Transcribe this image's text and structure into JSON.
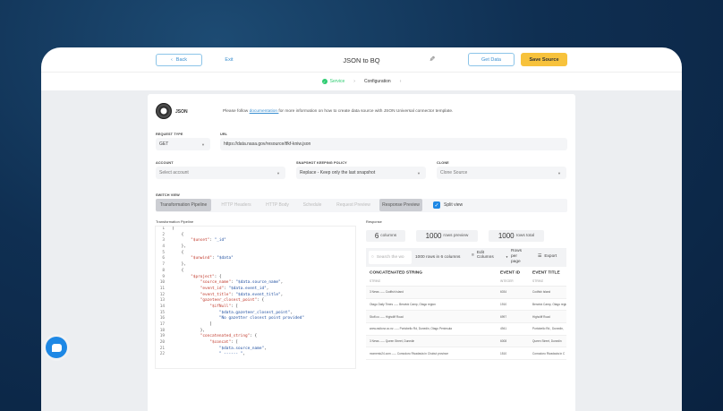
{
  "header": {
    "back": "Back",
    "exit": "Exit",
    "title": "JSON to BQ",
    "get_data": "Get Data",
    "save_source": "Save Source"
  },
  "steps": [
    {
      "label": "Service",
      "done": true
    },
    {
      "label": "Configuration",
      "done": false
    }
  ],
  "source": {
    "name": "JSON",
    "info_pre": "Please follow ",
    "info_link": "documentation ",
    "info_post": "for more information on how to create data source with JSON Universal connector template."
  },
  "form": {
    "request_type_label": "REQUEST TYPE",
    "request_type": "GET",
    "url_label": "URL",
    "url": "https://data.nasa.gov/resource/tfkf-kniw.json",
    "account_label": "ACCOUNT",
    "account_placeholder": "Select account",
    "snapshot_label": "SNAPSHOT KEEPING POLICY",
    "snapshot": "Replace - Keep only the last snapshot",
    "clone_label": "CLONE",
    "clone_placeholder": "Clone Source"
  },
  "switch_view": {
    "label": "SWITCH VIEW",
    "tabs": [
      "Transformation Pipeline",
      "HTTP Headers",
      "HTTP Body",
      "Schedule",
      "Request Preview",
      "Response Preview"
    ],
    "split_view": "Split view",
    "split_checked": true
  },
  "pipeline": {
    "label": "Transformation Pipeline",
    "lines": [
      "[",
      "    {",
      "        \"$unset\": \"_id\"",
      "    },",
      "    {",
      "        \"$unwind\": \"$data\"",
      "    },",
      "    {",
      "        \"$project\": {",
      "            \"source_name\": \"$data.source_name\",",
      "            \"event_id\": \"$data.event_id\",",
      "            \"event_title\": \"$data.event_title\",",
      "            \"gazeteer_closest_point\": {",
      "                \"$ifNull\": [",
      "                    \"$data.gazeteer_closest_point\",",
      "                    \"No gazetter closest point provided\"",
      "                ]",
      "            },",
      "            \"concatenated_string\": {",
      "                \"$concat\": [",
      "                    \"$data.source_name\",",
      "                    \" ------ \","
    ]
  },
  "response": {
    "label": "Response",
    "columns_n": "6",
    "columns_t": "columns",
    "preview_n": "1000",
    "preview_t": "rows preview",
    "total_n": "1000",
    "total_t": "rows total",
    "search_placeholder": "Search the wo",
    "summary": "1000 rows in 6 columns",
    "edit_columns": "Edit Columns",
    "rows_per_page": "Rows per page",
    "export": "Export",
    "headers": [
      {
        "name": "CONCATENATED STRING",
        "type": "STRING"
      },
      {
        "name": "EVENT ID",
        "type": "INTEGER"
      },
      {
        "name": "EVENT TITLE",
        "type": "STRING"
      }
    ],
    "rows": [
      [
        "3 News ----- Codfish Island",
        "6034",
        "Codfish Island"
      ],
      [
        "Otago Daily Times ----- Berwick Camp, Otago region",
        "1910",
        "Berwick Camp, Otago region"
      ],
      [
        "Stuff.co ----- Highcliff Road",
        "6997",
        "Highcliff Road"
      ],
      [
        "www.radionz.co.nz ----- Portobello Rd, Dunedin, Otago Peninsula",
        "4941",
        "Portobello Rd., Dunedin,"
      ],
      [
        "3 News ----- Queen Street, Dunedin",
        "6008",
        "Queen Street, Dunedin"
      ],
      [
        "momento24.com ----- Comodoro Rivadavia in Chubut province",
        "1510",
        "Comodoro Rivadavia in C"
      ]
    ]
  },
  "colors": {
    "accent": "#3a8fd0",
    "save": "#f7c23c",
    "success": "#2ecc71",
    "checkbox": "#1e88e5"
  }
}
